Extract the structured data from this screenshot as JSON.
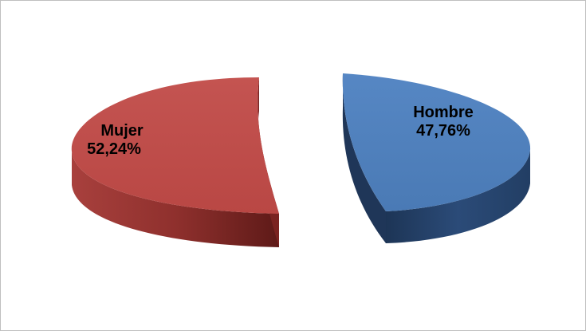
{
  "chart_data": {
    "type": "pie",
    "style": "3d-exploded",
    "title": "",
    "legend": "none",
    "slices": [
      {
        "name": "Mujer",
        "value": 52.24,
        "label_name": "Mujer",
        "label_value": "52,24%",
        "color": "#c0504d",
        "side_color": "#8c2a28"
      },
      {
        "name": "Hombre",
        "value": 47.76,
        "label_name": "Hombre",
        "label_value": "47,76%",
        "color": "#4f81bd",
        "side_color": "#243f66"
      }
    ]
  }
}
